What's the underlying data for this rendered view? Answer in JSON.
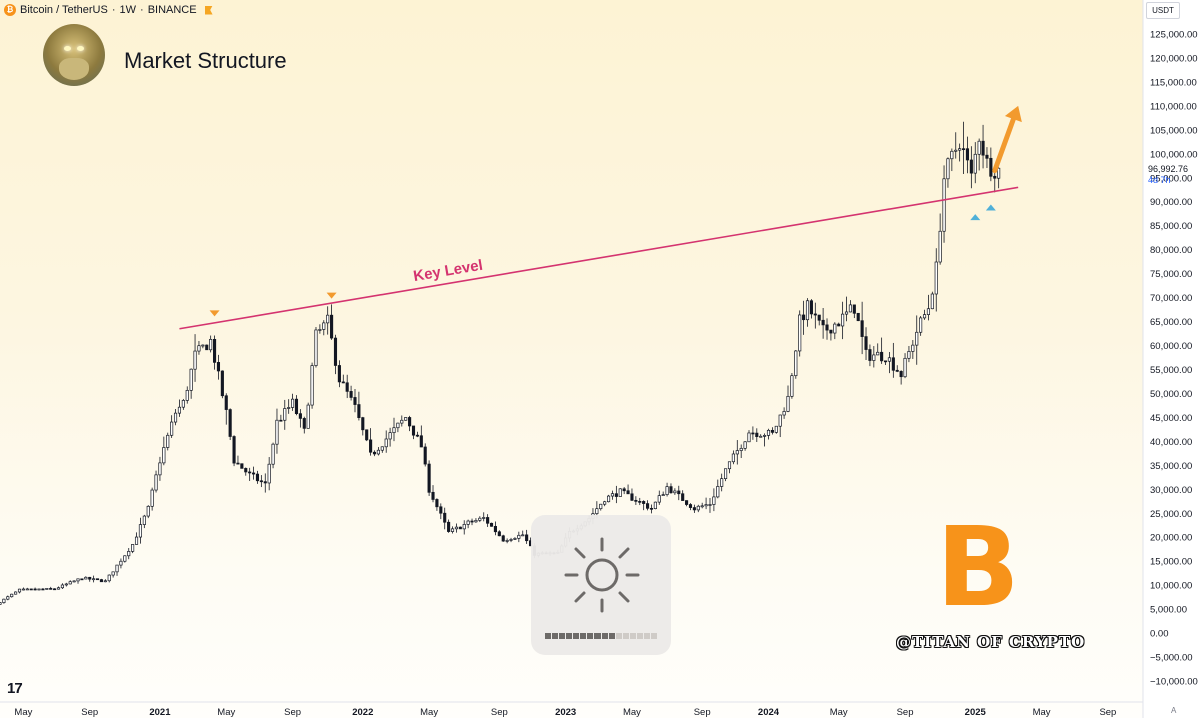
{
  "header": {
    "symbol": "Bitcoin / TetherUS",
    "interval": "1W",
    "exchange": "BINANCE",
    "separator": "·"
  },
  "title": "Market Structure",
  "currency_selector": "USDT",
  "last_price": {
    "value": "96,992.76",
    "countdown": "4d 7h"
  },
  "watermark": "@TITAN OF CRYPTO",
  "hud": {
    "icon": "brightness-sun-icon",
    "level_fraction": 0.6
  },
  "colors": {
    "up": "#ffffff",
    "down": "#131722",
    "wick": "#131722",
    "key_level": "#d4336f",
    "top_marker": "#f29a2e",
    "bottom_marker": "#4fb0d8",
    "arrow": "#f29a2e",
    "btc_orange": "#f7931a"
  },
  "icons": {
    "symbol": "btc-coin-icon",
    "flag": "flag-icon",
    "logo": "tradingview-logo-icon",
    "brand": "bitcoin-logo-icon"
  },
  "chart_data": {
    "type": "candlestick",
    "title": "",
    "xlabel": "",
    "ylabel": "",
    "currency": "USDT",
    "ylim": [
      -10000,
      125000
    ],
    "xlim": [
      "2020-03-23",
      "2025-11-03"
    ],
    "grid": false,
    "y_ticks": [
      "125,000.00",
      "120,000.00",
      "115,000.00",
      "110,000.00",
      "105,000.00",
      "100,000.00",
      "95,000.00",
      "90,000.00",
      "85,000.00",
      "80,000.00",
      "75,000.00",
      "70,000.00",
      "65,000.00",
      "60,000.00",
      "55,000.00",
      "50,000.00",
      "45,000.00",
      "40,000.00",
      "35,000.00",
      "30,000.00",
      "25,000.00",
      "20,000.00",
      "15,000.00",
      "10,000.00",
      "5,000.00",
      "0.00",
      "−5,000.00",
      "−10,000.00"
    ],
    "x_ticks": [
      {
        "label": "May",
        "date": "2020-05-04"
      },
      {
        "label": "Sep",
        "date": "2020-08-31"
      },
      {
        "label": "2021",
        "date": "2021-01-04",
        "bold": true
      },
      {
        "label": "May",
        "date": "2021-05-03"
      },
      {
        "label": "Sep",
        "date": "2021-08-30"
      },
      {
        "label": "2022",
        "date": "2022-01-03",
        "bold": true
      },
      {
        "label": "May",
        "date": "2022-05-02"
      },
      {
        "label": "Sep",
        "date": "2022-09-05"
      },
      {
        "label": "2023",
        "date": "2023-01-02",
        "bold": true
      },
      {
        "label": "May",
        "date": "2023-05-01"
      },
      {
        "label": "Sep",
        "date": "2023-09-04"
      },
      {
        "label": "2024",
        "date": "2024-01-01",
        "bold": true
      },
      {
        "label": "May",
        "date": "2024-05-06"
      },
      {
        "label": "Sep",
        "date": "2024-09-02"
      },
      {
        "label": "2025",
        "date": "2025-01-06",
        "bold": true
      },
      {
        "label": "May",
        "date": "2025-05-05"
      },
      {
        "label": "Sep",
        "date": "2025-09-01"
      }
    ],
    "path_points": [
      [
        "2020-03-23",
        6000
      ],
      [
        "2020-05-04",
        9000
      ],
      [
        "2020-07-06",
        9200
      ],
      [
        "2020-08-24",
        11500
      ],
      [
        "2020-10-05",
        10800
      ],
      [
        "2020-11-23",
        18500
      ],
      [
        "2020-12-21",
        26000
      ],
      [
        "2021-01-11",
        36000
      ],
      [
        "2021-02-08",
        46000
      ],
      [
        "2021-02-22",
        48000
      ],
      [
        "2021-03-15",
        58000
      ],
      [
        "2021-04-12",
        61000
      ],
      [
        "2021-05-10",
        46000
      ],
      [
        "2021-05-24",
        36000
      ],
      [
        "2021-06-21",
        33000
      ],
      [
        "2021-07-19",
        31000
      ],
      [
        "2021-08-09",
        44000
      ],
      [
        "2021-09-06",
        48000
      ],
      [
        "2021-09-27",
        42000
      ],
      [
        "2021-10-18",
        62000
      ],
      [
        "2021-11-08",
        65000
      ],
      [
        "2021-11-29",
        53000
      ],
      [
        "2021-12-27",
        47000
      ],
      [
        "2022-01-24",
        37000
      ],
      [
        "2022-03-28",
        45000
      ],
      [
        "2022-04-25",
        39000
      ],
      [
        "2022-05-09",
        30000
      ],
      [
        "2022-06-13",
        21000
      ],
      [
        "2022-07-18",
        23000
      ],
      [
        "2022-08-15",
        24000
      ],
      [
        "2022-09-19",
        19500
      ],
      [
        "2022-10-24",
        20500
      ],
      [
        "2022-11-14",
        16500
      ],
      [
        "2022-12-26",
        16600
      ],
      [
        "2023-01-16",
        21000
      ],
      [
        "2023-02-20",
        24000
      ],
      [
        "2023-03-20",
        28000
      ],
      [
        "2023-04-17",
        29500
      ],
      [
        "2023-06-12",
        26000
      ],
      [
        "2023-07-10",
        30500
      ],
      [
        "2023-08-28",
        26000
      ],
      [
        "2023-09-25",
        27000
      ],
      [
        "2023-10-23",
        34000
      ],
      [
        "2023-12-04",
        42000
      ],
      [
        "2024-01-15",
        41500
      ],
      [
        "2024-02-12",
        49000
      ],
      [
        "2024-03-04",
        65000
      ],
      [
        "2024-03-18",
        68000
      ],
      [
        "2024-04-15",
        63000
      ],
      [
        "2024-05-13",
        65000
      ],
      [
        "2024-06-10",
        68000
      ],
      [
        "2024-07-01",
        58000
      ],
      [
        "2024-08-05",
        58000
      ],
      [
        "2024-09-02",
        54000
      ],
      [
        "2024-09-30",
        63000
      ],
      [
        "2024-10-21",
        68000
      ],
      [
        "2024-11-04",
        76000
      ],
      [
        "2024-11-18",
        95000
      ],
      [
        "2024-12-16",
        103000
      ],
      [
        "2025-01-06",
        95000
      ],
      [
        "2025-01-20",
        104000
      ],
      [
        "2025-02-03",
        98000
      ],
      [
        "2025-02-17",
        97000
      ]
    ],
    "annotations": {
      "key_level": {
        "label": "Key Level",
        "start": [
          "2021-02-08",
          63500
        ],
        "end": [
          "2025-03-24",
          93000
        ]
      },
      "top_markers": [
        [
          "2021-04-12",
          66300
        ],
        [
          "2021-11-08",
          70000
        ]
      ],
      "bottom_markers": [
        [
          "2025-01-06",
          87000
        ],
        [
          "2025-02-03",
          89000
        ]
      ],
      "arrow": {
        "start": [
          "2025-02-10",
          96500
        ],
        "end": [
          "2025-03-24",
          110000
        ]
      }
    }
  }
}
